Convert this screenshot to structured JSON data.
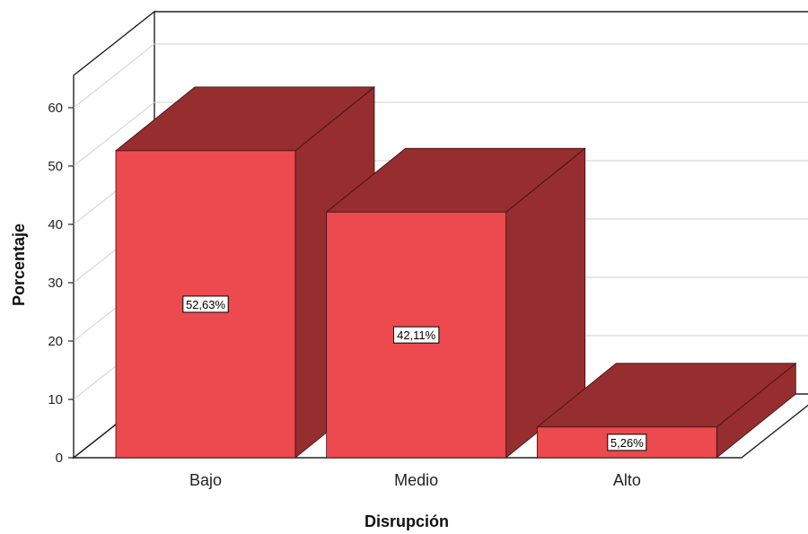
{
  "chart_data": {
    "type": "bar",
    "title": "",
    "xlabel": "Disrupción",
    "ylabel": "Porcentaje",
    "categories": [
      "Bajo",
      "Medio",
      "Alto"
    ],
    "values": [
      52.63,
      42.11,
      5.26
    ],
    "data_labels": [
      "52,63%",
      "42,11%",
      "5,26%"
    ],
    "ylim": [
      0,
      60
    ],
    "yticks": [
      0,
      10,
      20,
      30,
      40,
      50,
      60
    ],
    "grid": true,
    "three_d": true,
    "colors": {
      "bar_front": "#ec4a4e",
      "bar_side": "#962d2f",
      "bar_top": "#962d2f",
      "bar_edge": "#3a0f10",
      "gridline": "#cfcfcf",
      "frame": "#222222"
    }
  }
}
